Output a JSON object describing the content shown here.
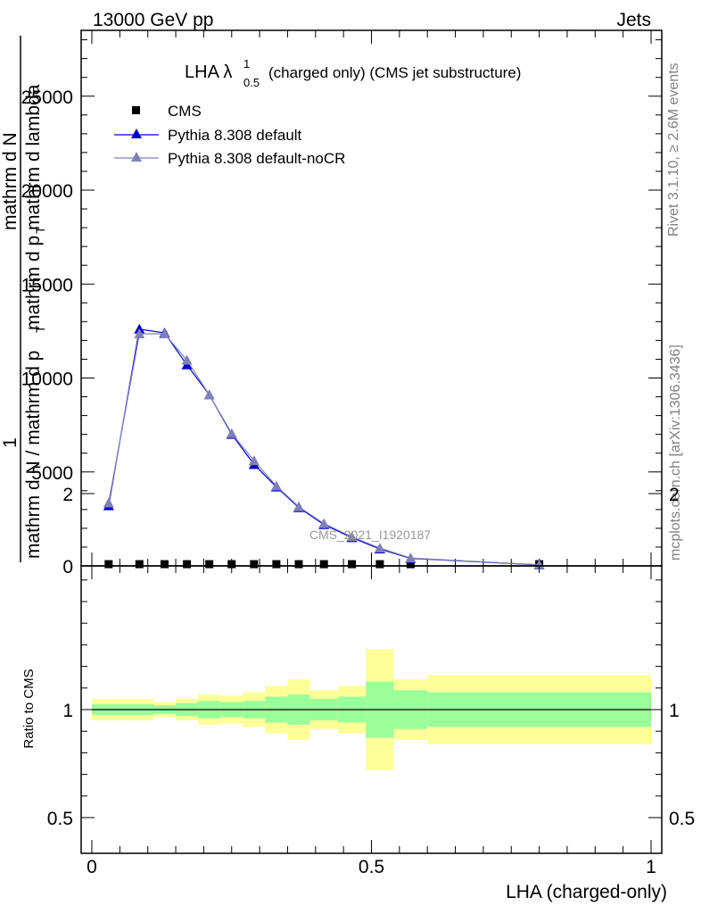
{
  "header": {
    "left": "13000 GeV pp",
    "right": "Jets"
  },
  "side_labels": {
    "rivet": "Rivet 3.1.10, ≥ 2.6M events",
    "mcplots": "mcplots.cern.ch [arXiv:1306.3436]"
  },
  "chart_data": [
    {
      "type": "line",
      "title": "LHA λ",
      "title_sup": "1",
      "title_sub": "0.5",
      "title_rest": "(charged only) (CMS jet substructure)",
      "watermark": "CMS_2021_I1920187",
      "ylabel_parts": [
        "1",
        "mathrm d N / mathrm d p",
        "T",
        "mathrm d N",
        "mathrm d p",
        "T",
        "mathrm d lambda",
        "2",
        "mathrm d"
      ],
      "xlim": [
        0,
        1
      ],
      "ylim": [
        0,
        28500
      ],
      "y_ticks": [
        0,
        5000,
        10000,
        15000,
        20000,
        25000
      ],
      "y_tick_labels": [
        "0",
        "5000",
        "10000",
        "15000",
        "20000",
        "25000"
      ],
      "legend": {
        "placement": "top-left",
        "entries": [
          "CMS",
          "Pythia 8.308 default",
          "Pythia 8.308 default-noCR"
        ]
      },
      "series": [
        {
          "name": "CMS",
          "color": "#000000",
          "marker": "square",
          "x": [
            0.03,
            0.085,
            0.13,
            0.17,
            0.21,
            0.25,
            0.29,
            0.33,
            0.37,
            0.415,
            0.465,
            0.515,
            0.57,
            0.8
          ],
          "y": [
            20,
            20,
            20,
            20,
            20,
            20,
            20,
            20,
            20,
            20,
            20,
            20,
            20,
            20
          ]
        },
        {
          "name": "Pythia 8.308 default",
          "color": "#0000cc",
          "marker": "triangle",
          "x": [
            0.03,
            0.085,
            0.13,
            0.17,
            0.21,
            0.25,
            0.29,
            0.33,
            0.37,
            0.415,
            0.465,
            0.515,
            0.57,
            0.8
          ],
          "y": [
            3200,
            12600,
            12400,
            10700,
            9100,
            7000,
            5400,
            4200,
            3100,
            2200,
            1500,
            900,
            400,
            50
          ]
        },
        {
          "name": "Pythia 8.308 default-noCR",
          "color": "#8080b8",
          "marker": "triangle",
          "x": [
            0.03,
            0.085,
            0.13,
            0.17,
            0.21,
            0.25,
            0.29,
            0.33,
            0.37,
            0.415,
            0.465,
            0.515,
            0.57,
            0.8
          ],
          "y": [
            3350,
            12350,
            12350,
            10950,
            9100,
            7050,
            5600,
            4250,
            3150,
            2250,
            1550,
            950,
            420,
            55
          ]
        }
      ]
    },
    {
      "type": "area",
      "ylabel": "Ratio to CMS",
      "xlabel": "LHA (charged-only)",
      "xlim": [
        0,
        1
      ],
      "ylim": [
        0.4,
        2.3
      ],
      "x_ticks": [
        0,
        0.5,
        1
      ],
      "x_tick_labels": [
        "0",
        "0.5",
        "1"
      ],
      "y_ticks": [
        0.5,
        1,
        2
      ],
      "y_tick_labels": [
        "0.5",
        "1",
        "2"
      ],
      "bands": {
        "edges": [
          0,
          0.06,
          0.11,
          0.15,
          0.19,
          0.23,
          0.27,
          0.31,
          0.35,
          0.39,
          0.44,
          0.49,
          0.54,
          0.6,
          1.0
        ],
        "inner_low": [
          0.975,
          0.975,
          0.98,
          0.97,
          0.96,
          0.965,
          0.96,
          0.94,
          0.93,
          0.95,
          0.94,
          0.87,
          0.91,
          0.92
        ],
        "inner_high": [
          1.025,
          1.025,
          1.02,
          1.03,
          1.04,
          1.035,
          1.04,
          1.06,
          1.07,
          1.05,
          1.06,
          1.13,
          1.09,
          1.08
        ],
        "outer_low": [
          0.95,
          0.95,
          0.965,
          0.95,
          0.93,
          0.935,
          0.92,
          0.89,
          0.86,
          0.91,
          0.89,
          0.72,
          0.86,
          0.84
        ],
        "outer_high": [
          1.05,
          1.05,
          1.035,
          1.05,
          1.07,
          1.065,
          1.08,
          1.11,
          1.14,
          1.09,
          1.11,
          1.28,
          1.14,
          1.16
        ]
      },
      "reference_line": 1,
      "inner_color": "#99ff99",
      "outer_color": "#ffff99"
    }
  ]
}
